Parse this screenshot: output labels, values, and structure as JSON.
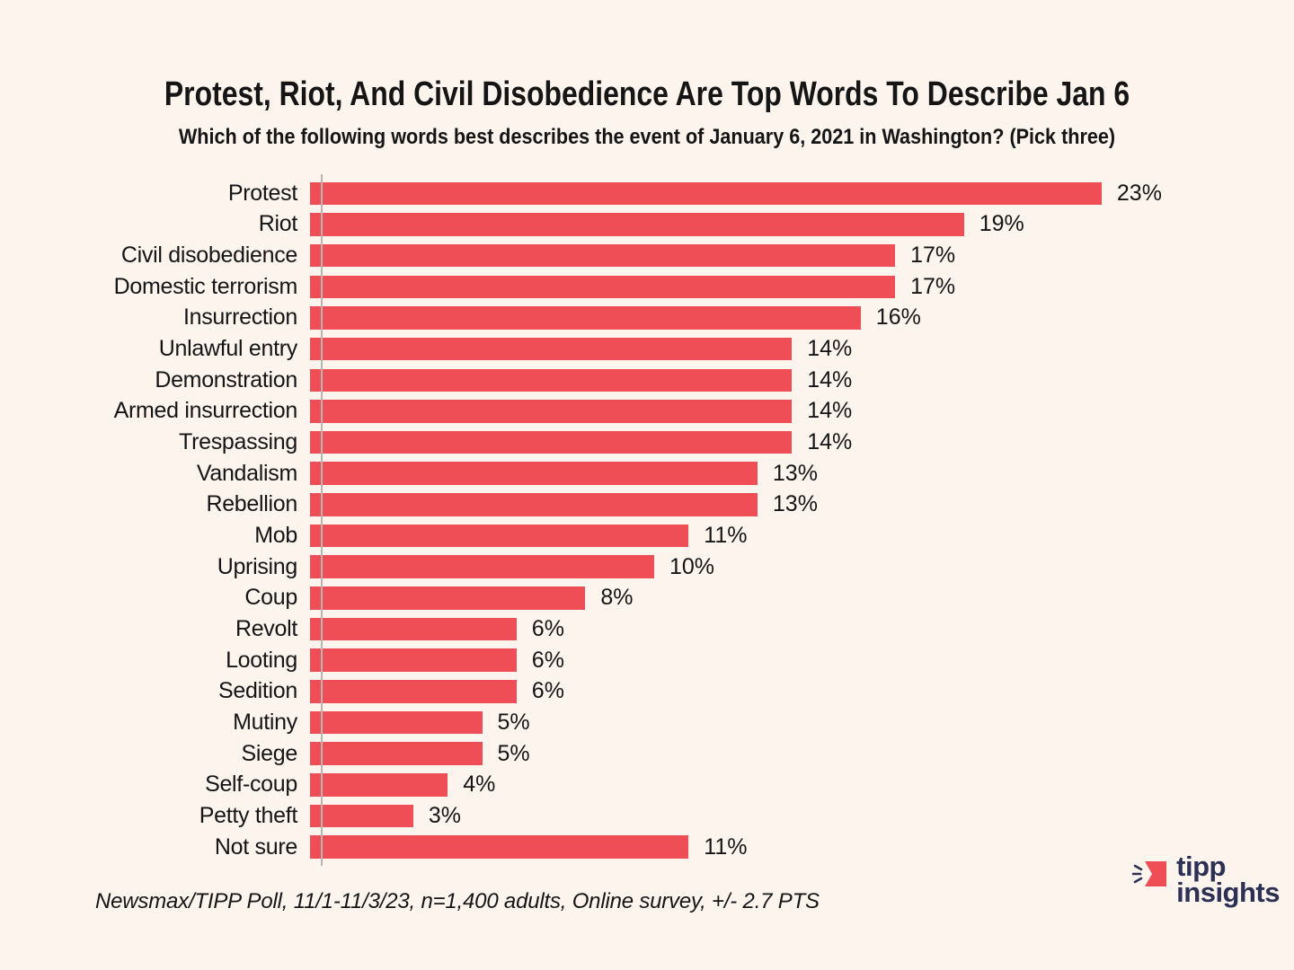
{
  "header": {
    "title": "Protest, Riot, And Civil Disobedience Are Top Words To Describe Jan 6",
    "subtitle": "Which of the following words best describes the event of January 6, 2021 in Washington? (Pick three)"
  },
  "chart_data": {
    "type": "bar",
    "orientation": "horizontal",
    "title": "Protest, Riot, And Civil Disobedience Are Top Words To Describe Jan 6",
    "subtitle": "Which of the following words best describes the event of January 6, 2021 in Washington? (Pick three)",
    "categories": [
      "Protest",
      "Riot",
      "Civil disobedience",
      "Domestic terrorism",
      "Insurrection",
      "Unlawful entry",
      "Demonstration",
      "Armed insurrection",
      "Trespassing",
      "Vandalism",
      "Rebellion",
      "Mob",
      "Uprising",
      "Coup",
      "Revolt",
      "Looting",
      "Sedition",
      "Mutiny",
      "Siege",
      "Self-coup",
      "Petty theft",
      "Not sure"
    ],
    "values": [
      23,
      19,
      17,
      17,
      16,
      14,
      14,
      14,
      14,
      13,
      13,
      11,
      10,
      8,
      6,
      6,
      6,
      5,
      5,
      4,
      3,
      11
    ],
    "value_suffix": "%",
    "xlim": [
      0,
      24
    ],
    "grid": false,
    "data_labels": true,
    "bar_color": "#EF4E57",
    "background_color": "#FDF4EE",
    "text_color": "#151515",
    "axis_line_color": "#b9b4b1"
  },
  "footer": {
    "source": "Newsmax/TIPP Poll, 11/1-11/3/23, n=1,400 adults, Online survey, +/- 2.7 PTS"
  },
  "logo": {
    "line1": "tipp",
    "line2": "insights",
    "text_color": "#2D3055",
    "icon": "tipp-arrow-icon",
    "icon_color": "#EF4E57"
  }
}
